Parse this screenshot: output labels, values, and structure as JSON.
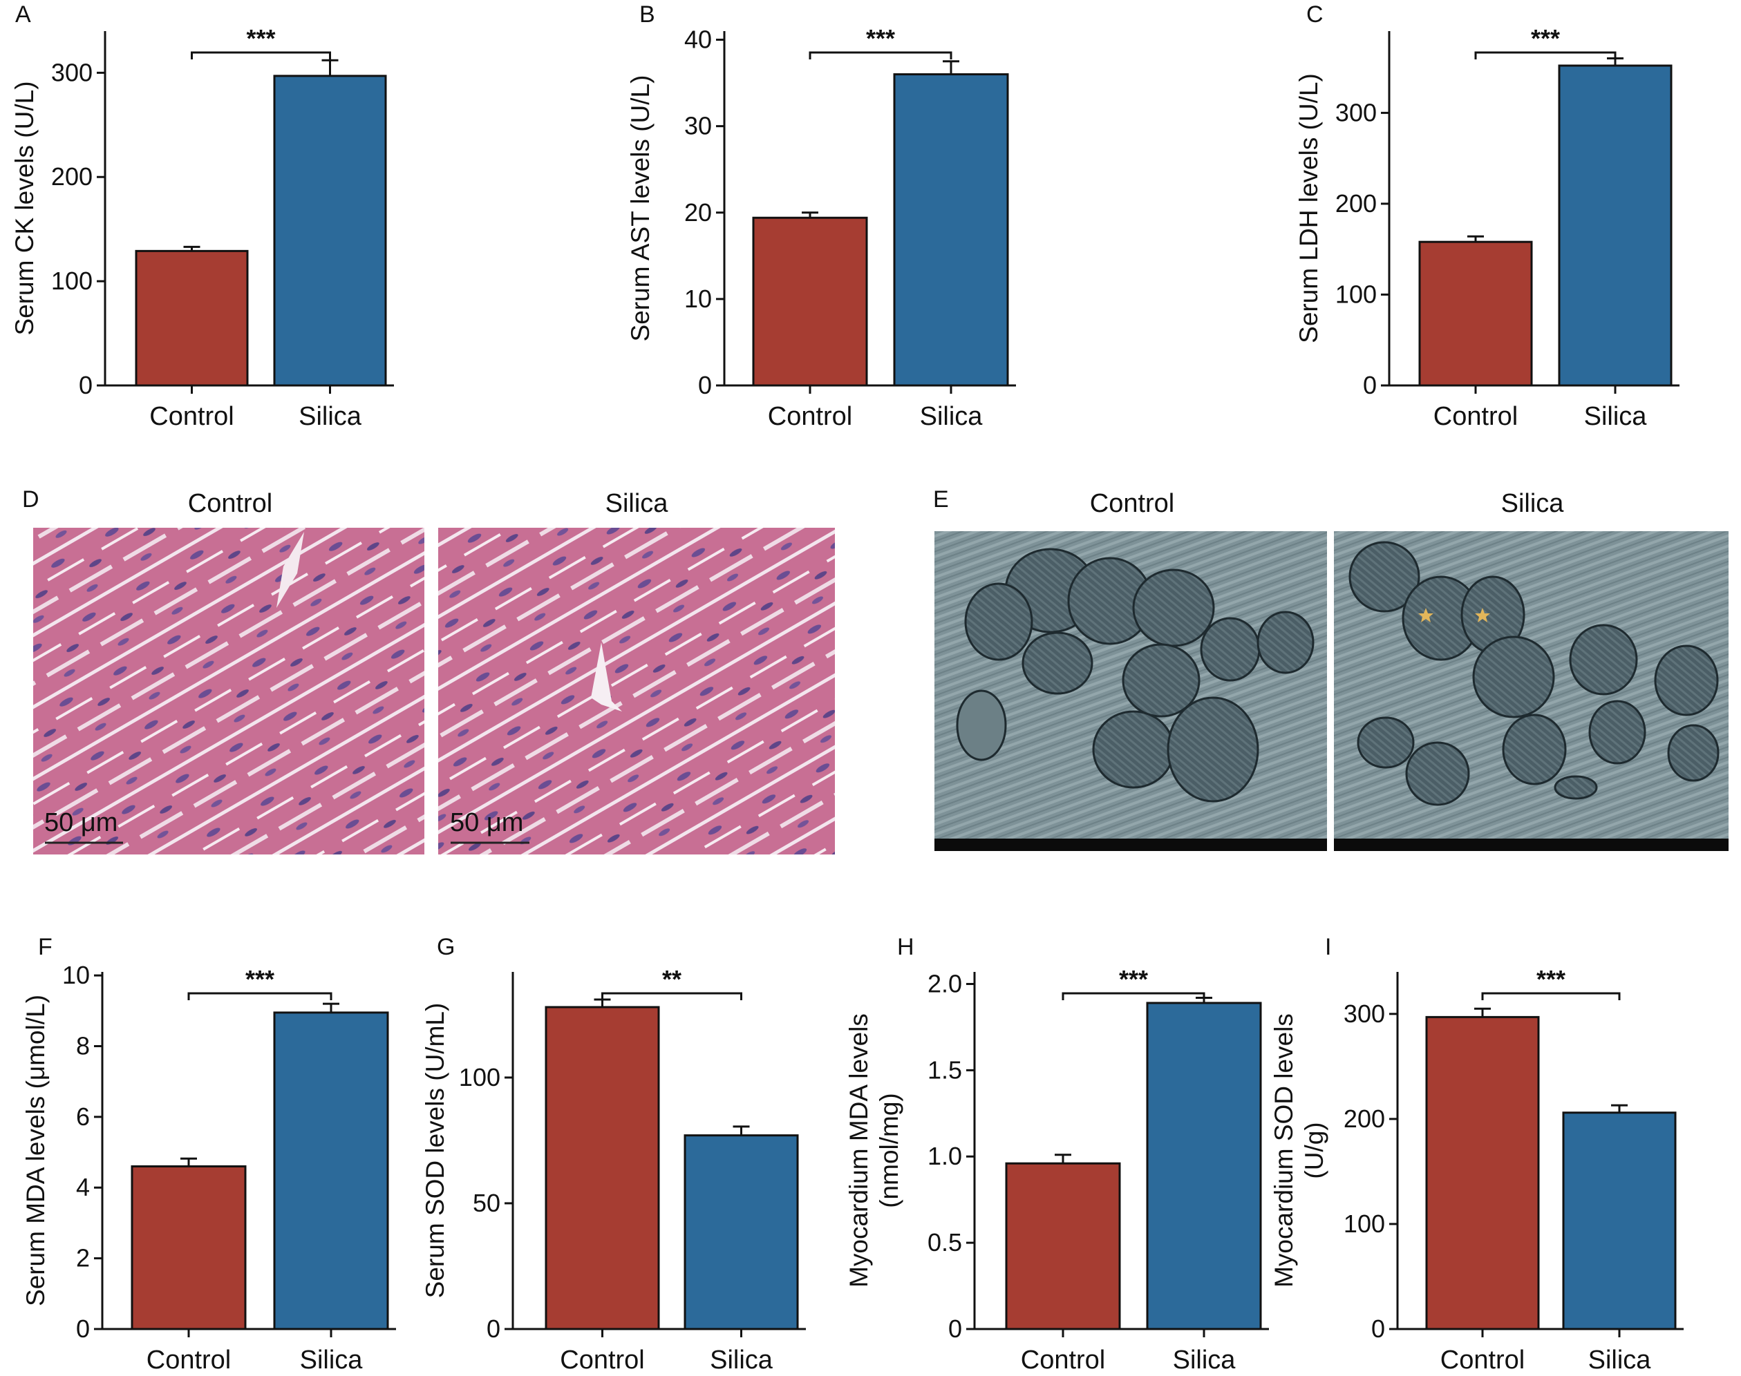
{
  "colors": {
    "control": "#A63D32",
    "silica": "#2C6A9A"
  },
  "chart_data": [
    {
      "panel": "A",
      "type": "bar",
      "categories": [
        "Control",
        "Silica"
      ],
      "values": [
        129,
        297
      ],
      "errors": [
        4,
        15
      ],
      "ylabel": "Serum CK levels (U/L)",
      "ylim": [
        0,
        340
      ],
      "yticks": [
        0,
        100,
        200,
        300
      ],
      "significance": "***"
    },
    {
      "panel": "B",
      "type": "bar",
      "categories": [
        "Control",
        "Silica"
      ],
      "values": [
        19.4,
        36.0
      ],
      "errors": [
        0.6,
        1.5
      ],
      "ylabel": "Serum AST levels (U/L)",
      "ylim": [
        0,
        41
      ],
      "yticks": [
        0,
        10,
        20,
        30,
        40
      ],
      "significance": "***"
    },
    {
      "panel": "C",
      "type": "bar",
      "categories": [
        "Control",
        "Silica"
      ],
      "values": [
        158,
        352
      ],
      "errors": [
        6,
        8
      ],
      "ylabel": "Serum LDH levels (U/L)",
      "ylim": [
        0,
        390
      ],
      "yticks": [
        0,
        100,
        200,
        300
      ],
      "significance": "***"
    },
    {
      "panel": "F",
      "type": "bar",
      "categories": [
        "Control",
        "Silica"
      ],
      "values": [
        4.6,
        8.95
      ],
      "errors": [
        0.22,
        0.25
      ],
      "ylabel": "Serum MDA levels (μmol/L)",
      "ylim": [
        0,
        10.1
      ],
      "yticks": [
        0,
        2,
        4,
        6,
        8,
        10
      ],
      "significance": "***"
    },
    {
      "panel": "G",
      "type": "bar",
      "categories": [
        "Control",
        "Silica"
      ],
      "values": [
        128,
        77
      ],
      "errors": [
        3,
        3.5
      ],
      "ylabel": "Serum SOD levels (U/mL)",
      "ylim": [
        0,
        142
      ],
      "yticks": [
        0,
        50,
        100
      ],
      "significance": "**"
    },
    {
      "panel": "H",
      "type": "bar",
      "categories": [
        "Control",
        "Silica"
      ],
      "values": [
        0.96,
        1.89
      ],
      "errors": [
        0.05,
        0.03
      ],
      "ylabel": "Myocardium MDA levels (nmol/mg)",
      "ylabel_lines": [
        "Myocardium MDA levels",
        "(nmol/mg)"
      ],
      "ylim": [
        0,
        2.07
      ],
      "yticks": [
        0,
        0.5,
        1.0,
        1.5,
        2.0
      ],
      "ytick_labels": [
        "0",
        "0.5",
        "1.0",
        "1.5",
        "2.0"
      ],
      "significance": "***"
    },
    {
      "panel": "I",
      "type": "bar",
      "categories": [
        "Control",
        "Silica"
      ],
      "values": [
        297,
        206
      ],
      "errors": [
        8,
        7
      ],
      "ylabel": "Myocardium SOD levels (U/g)",
      "ylabel_lines": [
        "Myocardium SOD levels",
        "(U/g)"
      ],
      "ylim": [
        0,
        340
      ],
      "yticks": [
        0,
        100,
        200,
        300
      ],
      "significance": "***"
    }
  ],
  "image_panels": [
    {
      "panel": "D",
      "titles": [
        "Control",
        "Silica"
      ],
      "scale_bar": "50 μm"
    },
    {
      "panel": "E",
      "titles": [
        "Control",
        "Silica"
      ]
    }
  ]
}
